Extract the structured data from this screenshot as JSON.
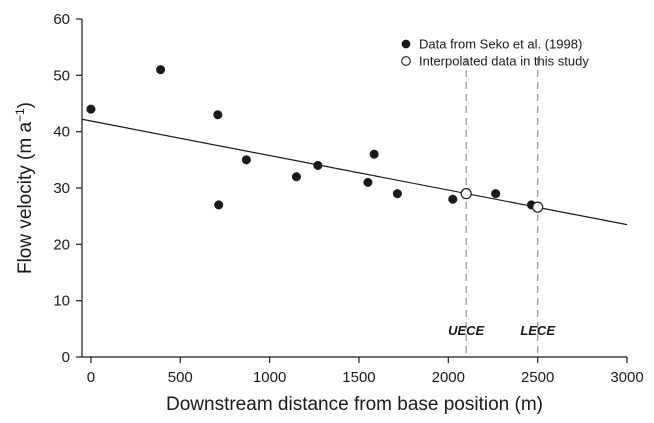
{
  "chart_data": {
    "type": "scatter",
    "xlabel": "Downstream distance from base position (m)",
    "ylabel": "Flow velocity (m a",
    "ylabel_sup": "−1",
    "ylabel_close": ")",
    "xlim": [
      -50,
      3000
    ],
    "ylim": [
      0,
      60
    ],
    "xticks": [
      0,
      500,
      1000,
      1500,
      2000,
      2500,
      3000
    ],
    "yticks": [
      0,
      10,
      20,
      30,
      40,
      50,
      60
    ],
    "grid": false,
    "legend_position": "top-right",
    "series": [
      {
        "name": "Data from Seko et al. (1998)",
        "marker": "filled-circle",
        "color": "#1a1a1a",
        "points": [
          [
            0,
            44
          ],
          [
            390,
            51
          ],
          [
            710,
            43
          ],
          [
            715,
            27
          ],
          [
            870,
            35
          ],
          [
            1150,
            32
          ],
          [
            1270,
            34
          ],
          [
            1550,
            31
          ],
          [
            1585,
            36
          ],
          [
            1715,
            29
          ],
          [
            2025,
            28
          ],
          [
            2265,
            29
          ],
          [
            2465,
            27
          ]
        ]
      },
      {
        "name": "Interpolated data in this study",
        "marker": "open-circle",
        "color": "#1a1a1a",
        "points": [
          [
            2100,
            29
          ],
          [
            2500,
            26.6
          ]
        ]
      }
    ],
    "trendline": {
      "x": [
        -50,
        3000
      ],
      "y": [
        42.2,
        23.5
      ],
      "color": "#1a1a1a"
    },
    "reference_lines": [
      {
        "x": 2100,
        "label": "UECE",
        "color": "#a0a0a0"
      },
      {
        "x": 2500,
        "label": "LECE",
        "color": "#a0a0a0"
      }
    ]
  }
}
